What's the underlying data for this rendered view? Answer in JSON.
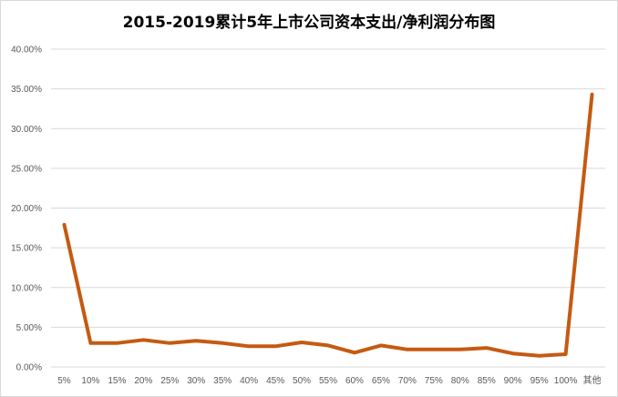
{
  "chart_data": {
    "type": "line",
    "title": "2015-2019累计5年上市公司资本支出/净利润分布图",
    "categories": [
      "5%",
      "10%",
      "15%",
      "20%",
      "25%",
      "30%",
      "35%",
      "40%",
      "45%",
      "50%",
      "55%",
      "60%",
      "65%",
      "70%",
      "75%",
      "80%",
      "85%",
      "90%",
      "95%",
      "100%",
      "其他"
    ],
    "series": [
      {
        "values": [
          17.9,
          3.0,
          3.0,
          3.4,
          3.0,
          3.3,
          3.0,
          2.6,
          2.6,
          3.1,
          2.7,
          1.8,
          2.7,
          2.2,
          2.2,
          2.2,
          2.4,
          1.7,
          1.4,
          1.6,
          34.3
        ]
      }
    ],
    "ylim": [
      0,
      40
    ],
    "yticks": [
      "0.00%",
      "5.00%",
      "10.00%",
      "15.00%",
      "20.00%",
      "25.00%",
      "30.00%",
      "35.00%",
      "40.00%"
    ],
    "xlabel": "",
    "ylabel": "",
    "grid": true,
    "legend": "none",
    "colors": {
      "line": "#C55A11",
      "grid": "#d9d9d9",
      "tick": "#595959"
    }
  }
}
